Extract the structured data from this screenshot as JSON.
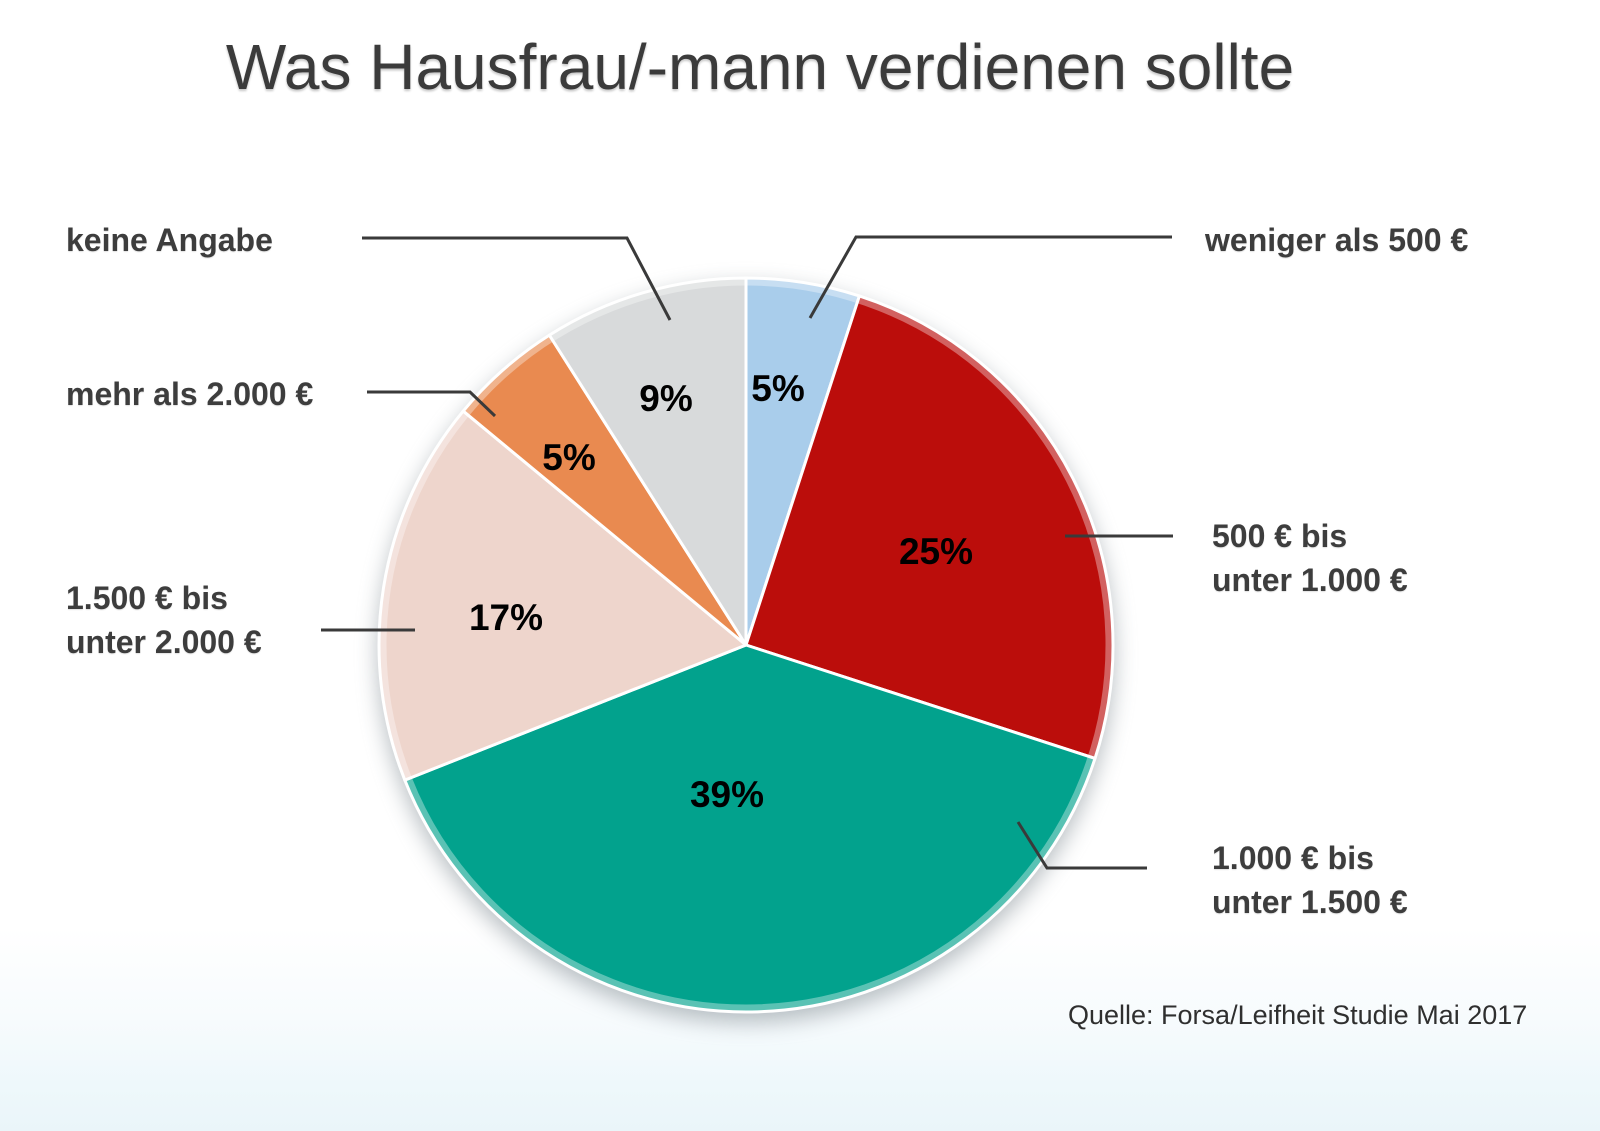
{
  "chart_data": {
    "type": "pie",
    "title": "Was Hausfrau/-mann verdienen sollte",
    "source": "Quelle: Forsa/Leifheit Studie Mai 2017",
    "unit": "%",
    "start_angle_deg": -90,
    "direction": "clockwise",
    "legend_position": "callout-labels",
    "segments": [
      {
        "id": "weniger-500",
        "label": "weniger als 500 €",
        "value": 5,
        "pct_label": "5%",
        "color": "#a9cdeb"
      },
      {
        "id": "500-1000",
        "label": "500 € bis\nunter 1.000 €",
        "value": 25,
        "pct_label": "25%",
        "color": "#bb0d0b"
      },
      {
        "id": "1000-1500",
        "label": "1.000 € bis\nunter 1.500 €",
        "value": 39,
        "pct_label": "39%",
        "color": "#02a28d"
      },
      {
        "id": "1500-2000",
        "label": "1.500 € bis\nunter 2.000 €",
        "value": 17,
        "pct_label": "17%",
        "color": "#eed5cc"
      },
      {
        "id": "mehr-2000",
        "label": "mehr als 2.000 €",
        "value": 5,
        "pct_label": "5%",
        "color": "#e98a50"
      },
      {
        "id": "keine-angabe",
        "label": "keine Angabe",
        "value": 9,
        "pct_label": "9%",
        "color": "#d8dadb"
      }
    ],
    "colors": {
      "leader_line": "#3a3a3a",
      "slice_divider": "#ffffff",
      "text_dark": "#3d3d3d"
    }
  }
}
